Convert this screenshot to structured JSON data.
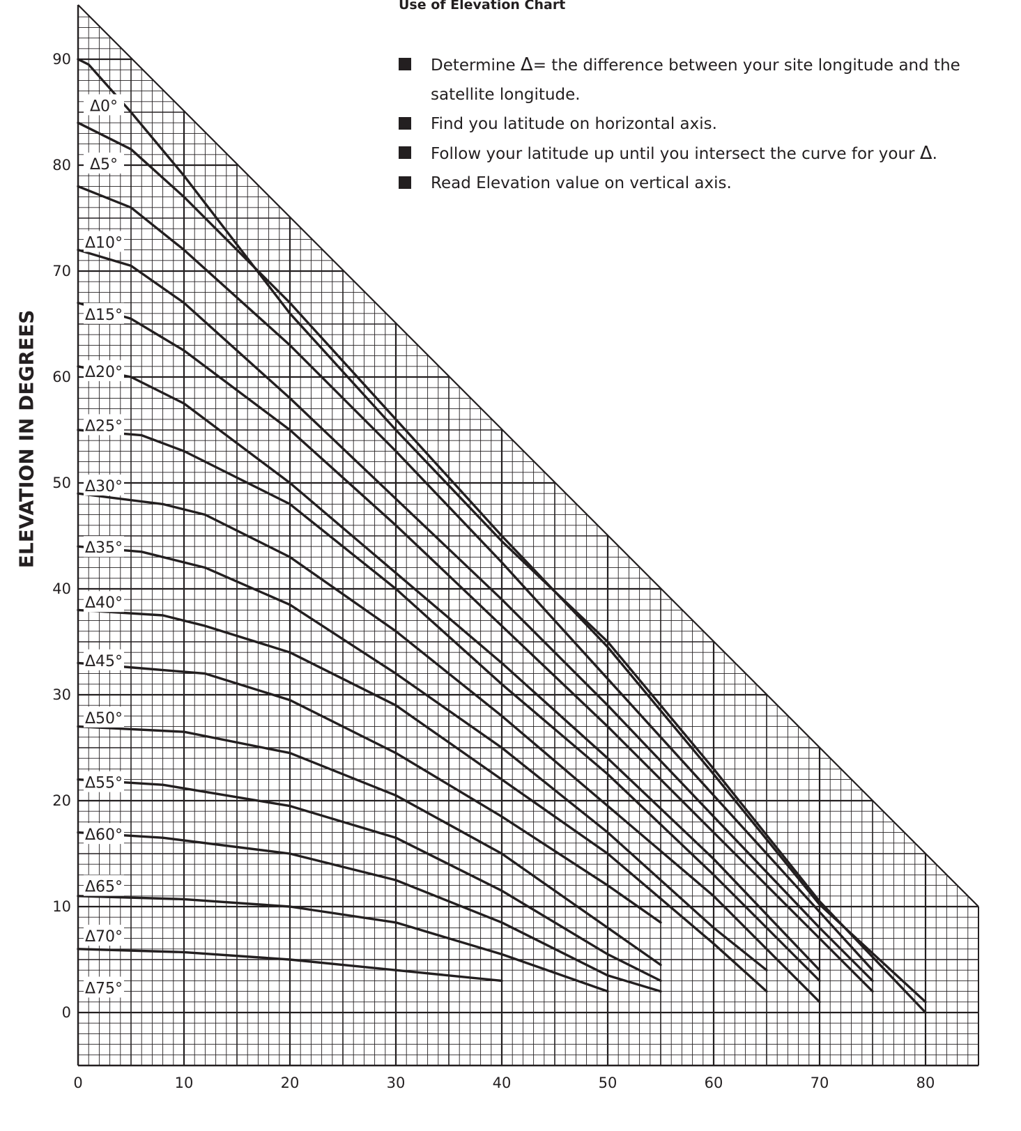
{
  "instructions": {
    "title": "Use of Elevation Chart",
    "steps": [
      {
        "before": "Determine ",
        "delta": "Δ",
        "after": "= the difference between your site longitude and the satellite longitude."
      },
      {
        "before": "Find you latitude on horizontal axis.",
        "delta": "",
        "after": ""
      },
      {
        "before": "Follow your latitude up until you intersect the curve for your ",
        "delta": "Δ",
        "after": "."
      },
      {
        "before": "Read Elevation value on vertical axis.",
        "delta": "",
        "after": ""
      }
    ]
  },
  "chart_data": {
    "type": "line",
    "title": "",
    "xlabel": "",
    "ylabel": "ELEVATION IN DEGREES",
    "xlim": [
      0,
      85
    ],
    "ylim": [
      -5,
      95
    ],
    "x_ticks": [
      0,
      10,
      20,
      30,
      40,
      50,
      60,
      70,
      80
    ],
    "y_ticks": [
      0,
      10,
      20,
      30,
      40,
      50,
      60,
      70,
      80,
      90
    ],
    "grid": true,
    "legend": "none",
    "series": [
      {
        "name": "Δ0°",
        "label_y": 85.7,
        "points": [
          [
            0,
            90
          ],
          [
            1,
            89.5
          ],
          [
            5,
            85
          ],
          [
            10,
            79
          ],
          [
            20,
            66
          ],
          [
            30,
            55
          ],
          [
            40,
            44.5
          ],
          [
            50,
            35
          ],
          [
            60,
            23
          ],
          [
            70,
            10.5
          ],
          [
            80,
            0
          ]
        ]
      },
      {
        "name": "Δ5°",
        "label_y": 80.2,
        "points": [
          [
            0,
            84
          ],
          [
            5,
            81.5
          ],
          [
            10,
            77
          ],
          [
            20,
            67
          ],
          [
            30,
            56
          ],
          [
            40,
            45
          ],
          [
            50,
            34.5
          ],
          [
            60,
            22.5
          ],
          [
            70,
            10.2
          ],
          [
            80,
            1
          ]
        ]
      },
      {
        "name": "Δ10°",
        "label_y": 72.8,
        "points": [
          [
            0,
            78
          ],
          [
            5,
            76
          ],
          [
            10,
            72
          ],
          [
            20,
            63
          ],
          [
            30,
            53
          ],
          [
            40,
            42.5
          ],
          [
            50,
            31.5
          ],
          [
            60,
            20.5
          ],
          [
            70,
            9.5
          ],
          [
            75,
            4
          ]
        ]
      },
      {
        "name": "Δ15°",
        "label_y": 66.0,
        "points": [
          [
            0,
            72
          ],
          [
            5,
            70.5
          ],
          [
            10,
            67
          ],
          [
            20,
            58
          ],
          [
            30,
            48.5
          ],
          [
            40,
            39
          ],
          [
            50,
            29
          ],
          [
            60,
            18.5
          ],
          [
            70,
            8
          ],
          [
            75,
            3
          ]
        ]
      },
      {
        "name": "Δ20°",
        "label_y": 60.6,
        "points": [
          [
            0,
            67
          ],
          [
            5,
            65.5
          ],
          [
            10,
            62.5
          ],
          [
            20,
            55
          ],
          [
            30,
            46
          ],
          [
            40,
            36.5
          ],
          [
            50,
            27
          ],
          [
            60,
            17
          ],
          [
            70,
            7
          ],
          [
            75,
            2
          ]
        ]
      },
      {
        "name": "Δ25°",
        "label_y": 55.5,
        "points": [
          [
            0,
            61
          ],
          [
            5,
            60
          ],
          [
            10,
            57.5
          ],
          [
            20,
            50
          ],
          [
            30,
            41.5
          ],
          [
            40,
            33
          ],
          [
            50,
            24
          ],
          [
            60,
            14.5
          ],
          [
            70,
            4
          ]
        ]
      },
      {
        "name": "Δ30°",
        "label_y": 49.8,
        "points": [
          [
            0,
            55
          ],
          [
            6,
            54.5
          ],
          [
            10,
            53
          ],
          [
            20,
            48
          ],
          [
            30,
            40
          ],
          [
            40,
            31
          ],
          [
            50,
            22.5
          ],
          [
            60,
            13
          ],
          [
            70,
            3
          ]
        ]
      },
      {
        "name": "Δ35°",
        "label_y": 44.0,
        "points": [
          [
            0,
            49
          ],
          [
            8,
            48
          ],
          [
            12,
            47
          ],
          [
            20,
            43
          ],
          [
            30,
            36
          ],
          [
            40,
            28
          ],
          [
            50,
            19.5
          ],
          [
            60,
            11
          ],
          [
            70,
            1
          ]
        ]
      },
      {
        "name": "Δ40°",
        "label_y": 38.8,
        "points": [
          [
            0,
            44
          ],
          [
            6,
            43.5
          ],
          [
            12,
            42
          ],
          [
            20,
            38.5
          ],
          [
            30,
            32
          ],
          [
            40,
            25
          ],
          [
            50,
            17
          ],
          [
            60,
            8
          ],
          [
            65,
            4
          ]
        ]
      },
      {
        "name": "Δ45°",
        "label_y": 33.3,
        "points": [
          [
            0,
            38
          ],
          [
            8,
            37.5
          ],
          [
            12,
            36.5
          ],
          [
            20,
            34
          ],
          [
            30,
            29
          ],
          [
            40,
            22
          ],
          [
            50,
            15
          ],
          [
            60,
            6.5
          ],
          [
            65,
            2
          ]
        ]
      },
      {
        "name": "Δ50°",
        "label_y": 27.9,
        "points": [
          [
            0,
            33
          ],
          [
            6,
            32.5
          ],
          [
            12,
            32
          ],
          [
            20,
            29.5
          ],
          [
            30,
            24.5
          ],
          [
            40,
            18.5
          ],
          [
            50,
            12
          ],
          [
            55,
            8.5
          ]
        ]
      },
      {
        "name": "Δ55°",
        "label_y": 21.8,
        "points": [
          [
            0,
            27
          ],
          [
            10,
            26.5
          ],
          [
            20,
            24.5
          ],
          [
            30,
            20.5
          ],
          [
            40,
            15
          ],
          [
            50,
            8
          ],
          [
            55,
            4.5
          ]
        ]
      },
      {
        "name": "Δ60°",
        "label_y": 16.9,
        "points": [
          [
            0,
            22
          ],
          [
            8,
            21.5
          ],
          [
            20,
            19.5
          ],
          [
            30,
            16.5
          ],
          [
            40,
            11.5
          ],
          [
            50,
            5.5
          ],
          [
            55,
            3
          ]
        ]
      },
      {
        "name": "Δ65°",
        "label_y": 12.0,
        "points": [
          [
            0,
            17
          ],
          [
            8,
            16.5
          ],
          [
            20,
            15
          ],
          [
            30,
            12.5
          ],
          [
            40,
            8.5
          ],
          [
            50,
            3.5
          ],
          [
            55,
            2
          ]
        ]
      },
      {
        "name": "Δ70°",
        "label_y": 7.3,
        "points": [
          [
            0,
            11
          ],
          [
            10,
            10.7
          ],
          [
            20,
            10
          ],
          [
            30,
            8.5
          ],
          [
            40,
            5.5
          ],
          [
            50,
            2
          ]
        ]
      },
      {
        "name": "Δ75°",
        "label_y": 2.4,
        "points": [
          [
            0,
            6
          ],
          [
            10,
            5.7
          ],
          [
            20,
            5
          ],
          [
            30,
            4
          ],
          [
            40,
            3
          ]
        ]
      }
    ]
  },
  "colors": {
    "ink": "#231f20",
    "background": "#ffffff"
  }
}
